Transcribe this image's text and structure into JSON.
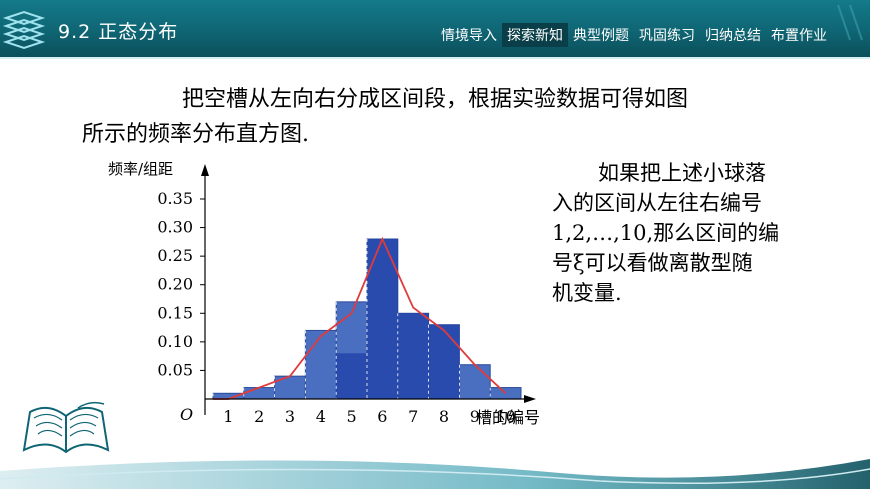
{
  "header": {
    "section_title": "9.2 正态分布",
    "nav": [
      "情境导入",
      "探索新知",
      "典型例题",
      "巩固练习",
      "归纳总结",
      "布置作业"
    ],
    "active_nav_index": 1,
    "bar_color": "#0f6573",
    "active_color": "#0a3f49"
  },
  "intro": {
    "line1": "把空槽从左向右分成区间段，根据实验数据可得如图",
    "line2": "所示的频率分布直方图."
  },
  "side_text": {
    "lines": [
      "如果把上述小球落",
      "入的区间从左往右编号",
      "1,2,…,10,那么区间的编",
      "号ξ可以看做离散型随",
      "机变量."
    ]
  },
  "chart_data": {
    "type": "bar",
    "categories": [
      "1",
      "2",
      "3",
      "4",
      "5",
      "6",
      "7",
      "8",
      "9",
      "10"
    ],
    "values": [
      0.01,
      0.02,
      0.04,
      0.12,
      0.17,
      0.28,
      0.15,
      0.13,
      0.06,
      0.02
    ],
    "highlight_values": [
      0,
      0,
      0,
      0,
      0.08,
      0.28,
      0.15,
      0.13,
      0,
      0
    ],
    "curve": [
      0.0,
      0.02,
      0.04,
      0.11,
      0.15,
      0.28,
      0.16,
      0.12,
      0.06,
      0.01
    ],
    "ylabel": "频率/组距",
    "xlabel": "槽的编号",
    "origin_label": "O",
    "yticks": [
      "0.05",
      "0.10",
      "0.15",
      "0.20",
      "0.25",
      "0.30",
      "0.35"
    ],
    "ylim": [
      0,
      0.38
    ],
    "bar_color": "#4a6fc0",
    "highlight_color": "#1f3fa8",
    "curve_color": "#e03a3a"
  }
}
